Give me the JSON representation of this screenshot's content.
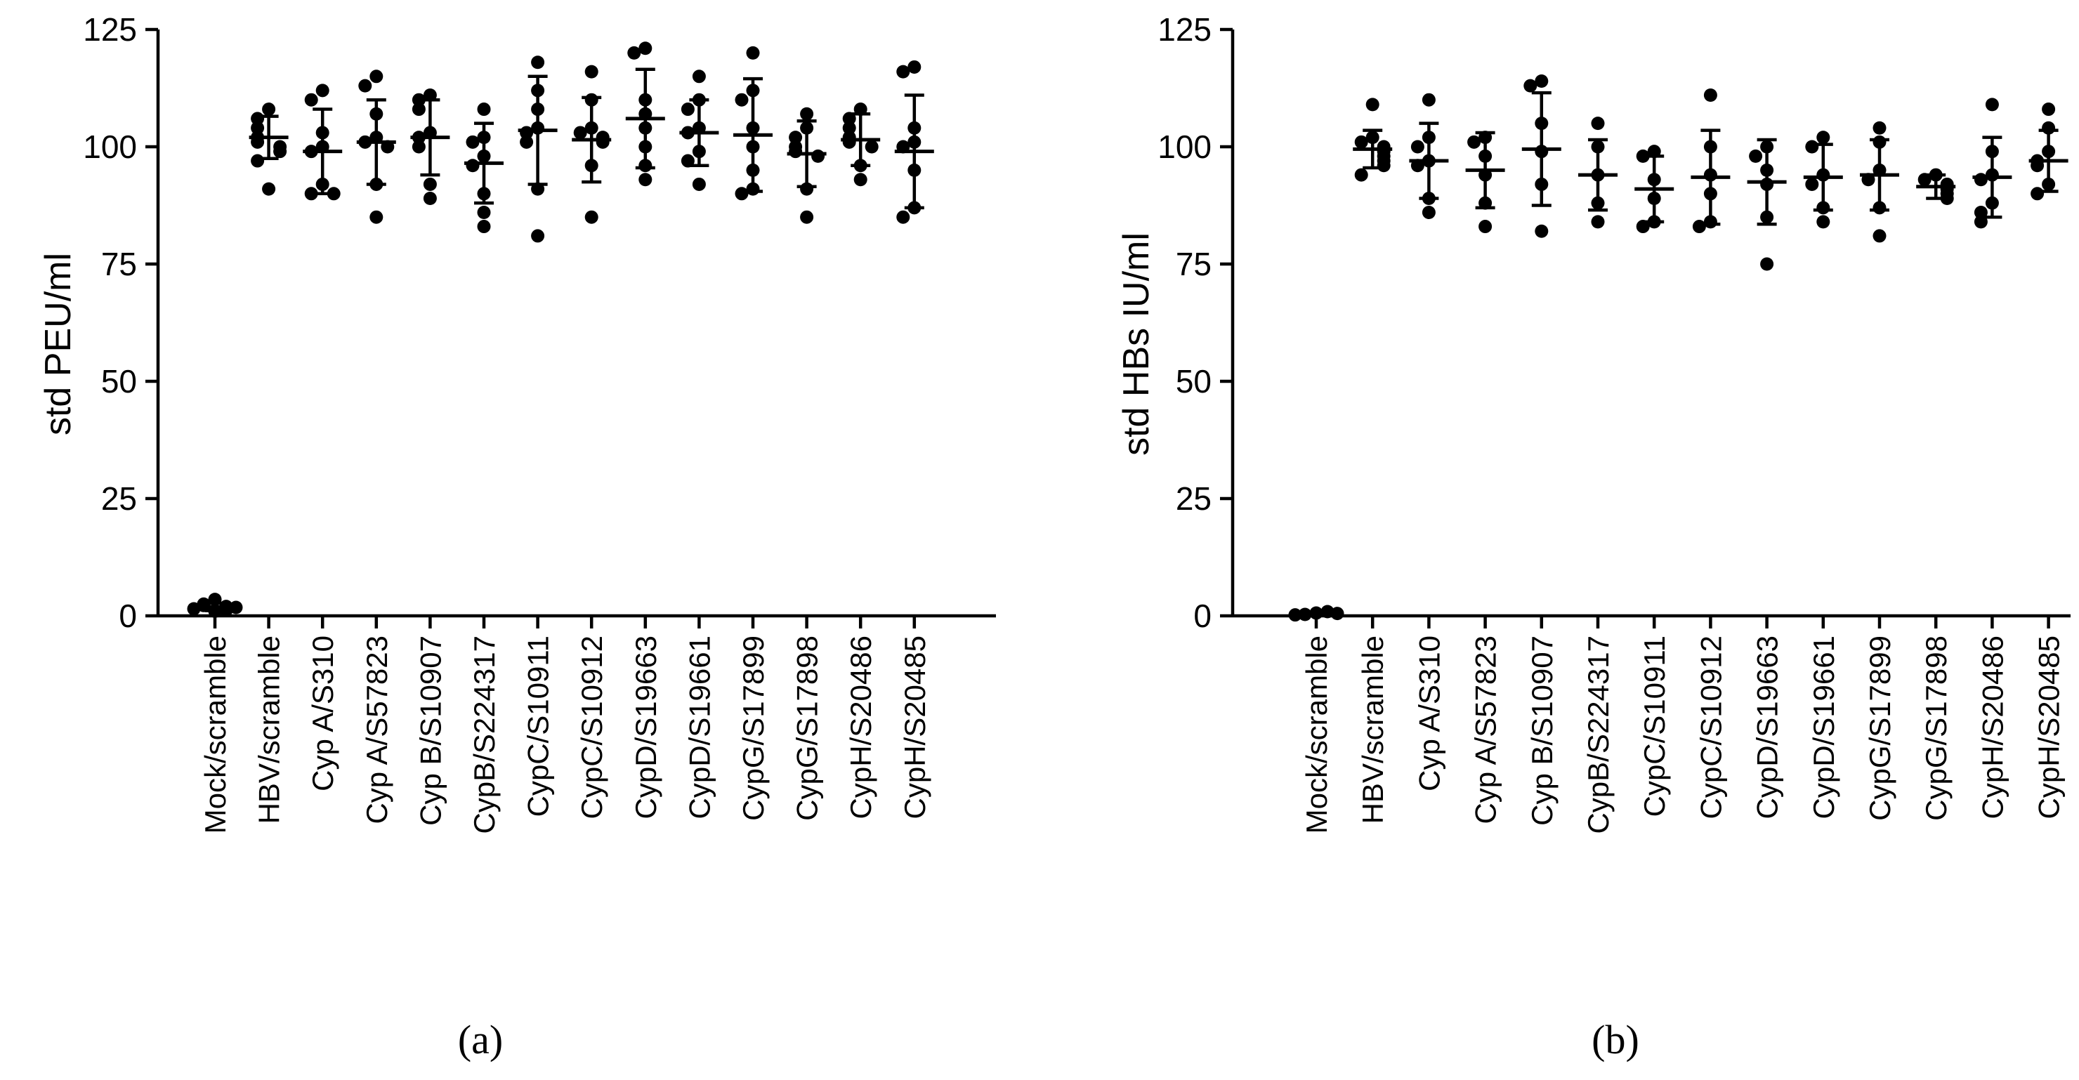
{
  "chart_data": [
    {
      "type": "scatter",
      "panel_label": "(a)",
      "ylabel": "std PEU/ml",
      "xlabel": "",
      "ylim": [
        0,
        125
      ],
      "yticks": [
        0,
        25,
        50,
        75,
        100,
        125
      ],
      "categories": [
        "Mock/scramble",
        "HBV/scramble",
        "Cyp A/S310",
        "Cyp A/S57823",
        "Cyp B/S10907",
        "CypB/S224317",
        "CypC/S10911",
        "CypC/S10912",
        "CypD/S19663",
        "CypD/S19661",
        "CypG/S17899",
        "CypG/S17898",
        "CypH/S20486",
        "CypH/S20485"
      ],
      "groups": [
        {
          "points": [
            3.5,
            2.5,
            2,
            1.5,
            1.8,
            1,
            2.2,
            1.2
          ],
          "mean": 1.9,
          "sd": 0.8
        },
        {
          "points": [
            108,
            106,
            104,
            102,
            101,
            100,
            99,
            97,
            91
          ],
          "mean": 102,
          "sd": 4.5
        },
        {
          "points": [
            112,
            110,
            103,
            100,
            99,
            92,
            90,
            90
          ],
          "mean": 99,
          "sd": 9
        },
        {
          "points": [
            115,
            113,
            107,
            102,
            101,
            100,
            92,
            85
          ],
          "mean": 101,
          "sd": 9
        },
        {
          "points": [
            111,
            110,
            108,
            103,
            102,
            100,
            92,
            89
          ],
          "mean": 102,
          "sd": 8
        },
        {
          "points": [
            108,
            102,
            101,
            98,
            96,
            90,
            86,
            83
          ],
          "mean": 96.5,
          "sd": 8.5
        },
        {
          "points": [
            118,
            112,
            108,
            104,
            103,
            101,
            91,
            81
          ],
          "mean": 103.5,
          "sd": 11.5
        },
        {
          "points": [
            116,
            110,
            104,
            103,
            102,
            101,
            96,
            85
          ],
          "mean": 101.5,
          "sd": 9
        },
        {
          "points": [
            121,
            120,
            110,
            107,
            104,
            100,
            96,
            93
          ],
          "mean": 106,
          "sd": 10.5
        },
        {
          "points": [
            115,
            110,
            108,
            104,
            103,
            99,
            97,
            92
          ],
          "mean": 103,
          "sd": 7
        },
        {
          "points": [
            120,
            112,
            110,
            104,
            100,
            95,
            91,
            90
          ],
          "mean": 102.5,
          "sd": 12
        },
        {
          "points": [
            107,
            104,
            102,
            100,
            99,
            98,
            91,
            85
          ],
          "mean": 98.5,
          "sd": 7
        },
        {
          "points": [
            108,
            106,
            104,
            102,
            101,
            100,
            96,
            93
          ],
          "mean": 101.5,
          "sd": 5.5
        },
        {
          "points": [
            117,
            116,
            104,
            101,
            100,
            95,
            87,
            85
          ],
          "mean": 99,
          "sd": 12
        }
      ]
    },
    {
      "type": "scatter",
      "panel_label": "(b)",
      "ylabel": "std HBs IU/ml",
      "xlabel": "",
      "ylim": [
        0,
        125
      ],
      "yticks": [
        0,
        25,
        50,
        75,
        100,
        125
      ],
      "categories": [
        "Mock/scramble",
        "HBV/scramble",
        "Cyp A/S310",
        "Cyp A/S57823",
        "Cyp B/S10907",
        "CypB/S224317",
        "CypC/S10911",
        "CypC/S10912",
        "CypD/S19663",
        "CypD/S19661",
        "CypG/S17899",
        "CypG/S17898",
        "CypH/S20486",
        "CypH/S20485"
      ],
      "groups": [
        {
          "points": [
            0.6,
            0.3,
            0.9,
            0.2,
            0.5
          ],
          "mean": 0.5,
          "sd": 0.3
        },
        {
          "points": [
            109,
            102,
            101,
            100,
            99,
            98,
            97,
            96,
            94
          ],
          "mean": 99.5,
          "sd": 4
        },
        {
          "points": [
            110,
            102,
            100,
            97,
            96,
            89,
            86
          ],
          "mean": 97,
          "sd": 8
        },
        {
          "points": [
            102,
            101,
            98,
            94,
            88,
            83
          ],
          "mean": 95,
          "sd": 8
        },
        {
          "points": [
            114,
            113,
            105,
            99,
            92,
            82
          ],
          "mean": 99.5,
          "sd": 12
        },
        {
          "points": [
            105,
            100,
            94,
            88,
            84
          ],
          "mean": 94,
          "sd": 7.5
        },
        {
          "points": [
            99,
            98,
            93,
            89,
            84,
            83
          ],
          "mean": 91,
          "sd": 7
        },
        {
          "points": [
            111,
            100,
            94,
            90,
            84,
            83
          ],
          "mean": 93.5,
          "sd": 10
        },
        {
          "points": [
            100,
            98,
            95,
            92,
            85,
            75
          ],
          "mean": 92.5,
          "sd": 9
        },
        {
          "points": [
            102,
            100,
            94,
            92,
            87,
            84
          ],
          "mean": 93.5,
          "sd": 7
        },
        {
          "points": [
            104,
            101,
            95,
            93,
            87,
            81
          ],
          "mean": 94,
          "sd": 7.5
        },
        {
          "points": [
            94,
            93,
            92,
            91,
            90,
            89
          ],
          "mean": 91.5,
          "sd": 2.5
        },
        {
          "points": [
            109,
            99,
            94,
            93,
            88,
            86,
            84
          ],
          "mean": 93.5,
          "sd": 8.5
        },
        {
          "points": [
            108,
            104,
            99,
            97,
            96,
            92,
            90
          ],
          "mean": 97,
          "sd": 6.5
        }
      ]
    }
  ]
}
